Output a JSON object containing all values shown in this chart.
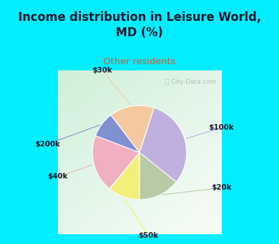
{
  "title": "Income distribution in Leisure World,\nMD (%)",
  "subtitle": "Other residents",
  "labels": [
    "$100k",
    "$20k",
    "$50k",
    "$40k",
    "$200k",
    "$30k"
  ],
  "sizes": [
    28,
    13,
    10,
    18,
    8,
    14
  ],
  "colors": [
    "#c0b0e0",
    "#b8cba8",
    "#f0f07a",
    "#f0b0c0",
    "#8090d0",
    "#f5c9a0"
  ],
  "bg_cyan": "#00eeff",
  "bg_chart_color": "#d8edd8",
  "title_color": "#1a1a2e",
  "subtitle_color": "#c06030",
  "watermark": "City-Data.com",
  "label_color": "#1a1a2e",
  "startangle": 72,
  "line_colors": [
    "#c0b0e0",
    "#b8cba8",
    "#f0f07a",
    "#f0b0c0",
    "#8090d0",
    "#f5c9a0"
  ]
}
